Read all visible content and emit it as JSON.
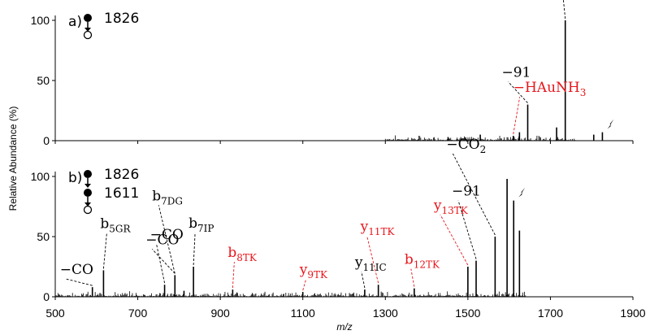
{
  "chart_data": {
    "type": "bar",
    "ylabel": "Relative Abundance (%)",
    "xlabel": "m/z",
    "xlim": [
      500,
      1900
    ],
    "xticks": [
      "500",
      "700",
      "900",
      "1100",
      "1300",
      "1500",
      "1700",
      "1900"
    ],
    "yticks": [
      "0",
      "50",
      "100"
    ],
    "ylim": [
      0,
      100
    ],
    "colors": {
      "black": "#000000",
      "red": "#e8151b"
    },
    "panels": [
      {
        "label": "a)",
        "precursor_labels": [
          "1826"
        ],
        "peaks": [
          {
            "mz": 1452,
            "y": 3
          },
          {
            "mz": 1530,
            "y": 5
          },
          {
            "mz": 1610,
            "y": 4
          },
          {
            "mz": 1625,
            "y": 7
          },
          {
            "mz": 1645,
            "y": 30
          },
          {
            "mz": 1715,
            "y": 11
          },
          {
            "mz": 1736,
            "y": 100
          },
          {
            "mz": 1805,
            "y": 5
          },
          {
            "mz": 1826,
            "y": 7
          }
        ],
        "annotations": [
          {
            "text": "−91",
            "sub": "",
            "mz": 1736,
            "y": 100,
            "color": "black"
          },
          {
            "text": "−HAuNH",
            "sub": "3",
            "mz": 1610,
            "y": 4,
            "color": "red"
          },
          {
            "text": "−91",
            "sub": "",
            "mz": 1645,
            "y": 30,
            "color": "black"
          }
        ]
      },
      {
        "label": "b)",
        "precursor_labels": [
          "1826",
          "1611"
        ],
        "peaks": [
          {
            "mz": 590,
            "y": 8
          },
          {
            "mz": 617,
            "y": 22
          },
          {
            "mz": 765,
            "y": 10
          },
          {
            "mz": 790,
            "y": 18
          },
          {
            "mz": 812,
            "y": 5
          },
          {
            "mz": 835,
            "y": 25
          },
          {
            "mz": 930,
            "y": 6
          },
          {
            "mz": 1100,
            "y": 4
          },
          {
            "mz": 1250,
            "y": 6
          },
          {
            "mz": 1283,
            "y": 10
          },
          {
            "mz": 1370,
            "y": 7
          },
          {
            "mz": 1500,
            "y": 25
          },
          {
            "mz": 1520,
            "y": 30
          },
          {
            "mz": 1566,
            "y": 50
          },
          {
            "mz": 1595,
            "y": 98
          },
          {
            "mz": 1611,
            "y": 80
          },
          {
            "mz": 1625,
            "y": 55
          }
        ],
        "annotations": [
          {
            "text": "−CO",
            "sub": "",
            "mz": 590,
            "y": 8,
            "color": "black"
          },
          {
            "text": "b",
            "sub": "5GR",
            "mz": 617,
            "y": 22,
            "color": "black"
          },
          {
            "text": "−CO",
            "sub": "",
            "mz": 765,
            "y": 10,
            "color": "black"
          },
          {
            "text": "−CO",
            "sub": "",
            "mz": 790,
            "y": 18,
            "color": "black"
          },
          {
            "text": "b",
            "sub": "7DG",
            "mz": 790,
            "y": 18,
            "color": "black"
          },
          {
            "text": "b",
            "sub": "7IP",
            "mz": 835,
            "y": 25,
            "color": "black"
          },
          {
            "text": "b",
            "sub": "8TK",
            "mz": 930,
            "y": 6,
            "color": "red"
          },
          {
            "text": "y",
            "sub": "9TK",
            "mz": 1100,
            "y": 4,
            "color": "red"
          },
          {
            "text": "y",
            "sub": "11IC",
            "mz": 1250,
            "y": 6,
            "color": "black"
          },
          {
            "text": "y",
            "sub": "11TK",
            "mz": 1283,
            "y": 10,
            "color": "red"
          },
          {
            "text": "b",
            "sub": "12TK",
            "mz": 1370,
            "y": 7,
            "color": "red"
          },
          {
            "text": "y",
            "sub": "13TK",
            "mz": 1500,
            "y": 25,
            "color": "red"
          },
          {
            "text": "−91",
            "sub": "",
            "mz": 1520,
            "y": 30,
            "color": "black"
          },
          {
            "text": "−CO",
            "sub": "2",
            "mz": 1566,
            "y": 50,
            "color": "black"
          }
        ]
      }
    ]
  }
}
